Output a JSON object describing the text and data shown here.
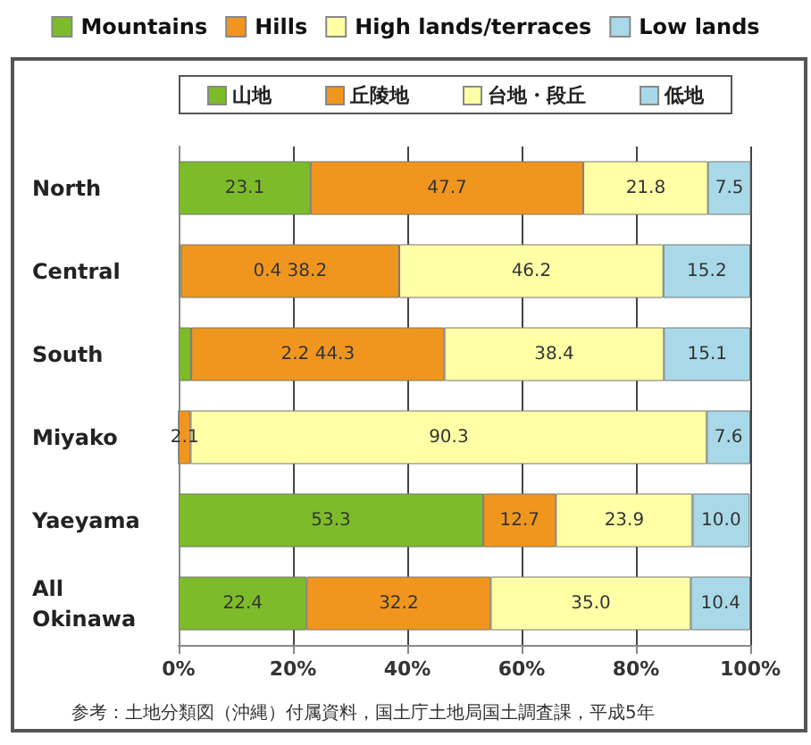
{
  "chart_data": {
    "type": "bar",
    "orientation": "horizontal",
    "stacked": true,
    "categories": [
      "North",
      "Central",
      "South",
      "Miyako",
      "Yaeyama",
      "All\nOkinawa"
    ],
    "series": [
      {
        "name": "Mountains",
        "color": "#7dbb2a",
        "values": [
          23.1,
          0.4,
          2.2,
          0,
          53.3,
          22.4
        ],
        "value_labels": [
          "23.1",
          null,
          null,
          null,
          "53.3",
          "22.4"
        ]
      },
      {
        "name": "Hills",
        "color": "#f0961e",
        "values": [
          47.7,
          38.2,
          44.3,
          2.1,
          12.7,
          32.2
        ],
        "value_labels": [
          "47.7",
          "0.4 38.2",
          "2.2 44.3",
          "2.1",
          "12.7",
          "32.2"
        ]
      },
      {
        "name": "High lands/terraces",
        "color": "#ffffa6",
        "values": [
          21.8,
          46.2,
          38.4,
          90.3,
          23.9,
          35.0
        ],
        "value_labels": [
          "21.8",
          "46.2",
          "38.4",
          "90.3",
          "23.9",
          "35.0"
        ]
      },
      {
        "name": "Low lands",
        "color": "#a9d9e8",
        "values": [
          7.5,
          15.2,
          15.1,
          7.6,
          10.0,
          10.4
        ],
        "value_labels": [
          "7.5",
          "15.2",
          "15.1",
          "7.6",
          "10.0",
          "10.4"
        ]
      }
    ],
    "xlim": [
      0,
      100
    ],
    "xticks": [
      {
        "value": 0,
        "label": "0%"
      },
      {
        "value": 20,
        "label": "20%"
      },
      {
        "value": 40,
        "label": "40%"
      },
      {
        "value": 60,
        "label": "60%"
      },
      {
        "value": 80,
        "label": "80%"
      },
      {
        "value": 100,
        "label": "100%"
      }
    ],
    "grid": "x",
    "legend": "top",
    "annotations": [
      "山地",
      "丘陵地",
      "台地・段丘",
      "低地",
      "参考：土地分類図（沖縄）付属資料，国土庁土地局国土調査課，平成5年"
    ]
  }
}
